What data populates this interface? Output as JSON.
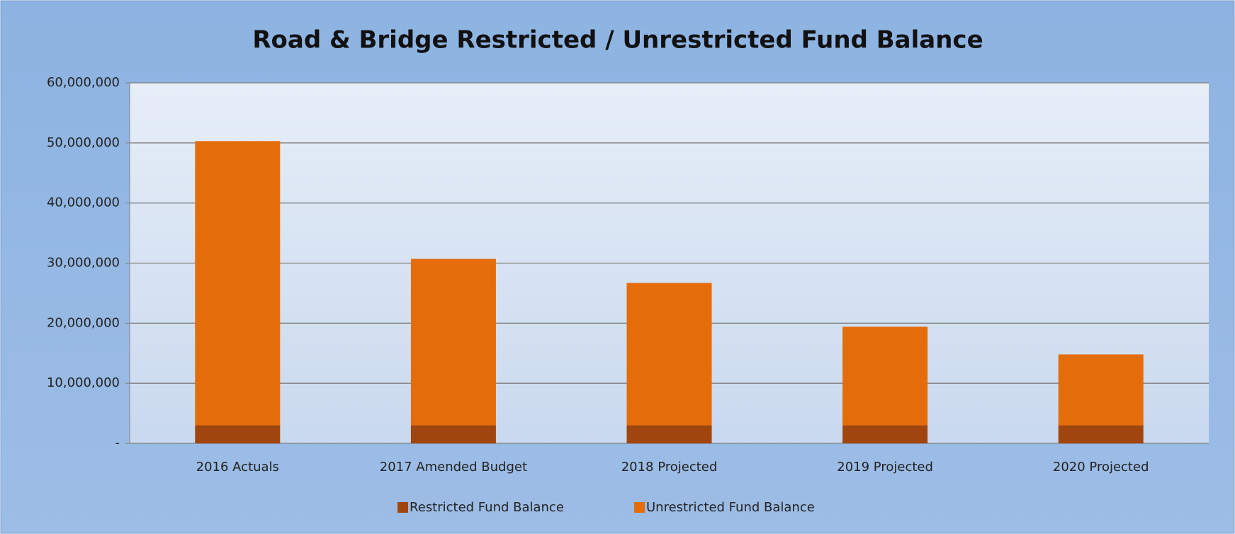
{
  "chart_data": {
    "type": "stacked_bar",
    "title": "Road & Bridge Restricted / Unrestricted Fund Balance",
    "categories": [
      "2016 Actuals",
      "2017 Amended Budget",
      "2018 Projected",
      "2019 Projected",
      "2020 Projected"
    ],
    "series": [
      {
        "name": "Restricted Fund Balance",
        "color": "#a0450e",
        "values": [
          3000000,
          3000000,
          3000000,
          3000000,
          3000000
        ]
      },
      {
        "name": "Unrestricted Fund Balance",
        "color": "#e46c0a",
        "values": [
          47300000,
          27700000,
          23700000,
          16400000,
          11800000
        ]
      }
    ],
    "ylim": [
      0,
      60000000
    ],
    "yticks": [
      {
        "value": 0,
        "label": "-"
      },
      {
        "value": 10000000,
        "label": "10,000,000"
      },
      {
        "value": 20000000,
        "label": "20,000,000"
      },
      {
        "value": 30000000,
        "label": "30,000,000"
      },
      {
        "value": 40000000,
        "label": "40,000,000"
      },
      {
        "value": 50000000,
        "label": "50,000,000"
      },
      {
        "value": 60000000,
        "label": "60,000,000"
      }
    ],
    "grid": true,
    "legend": "bottom"
  }
}
